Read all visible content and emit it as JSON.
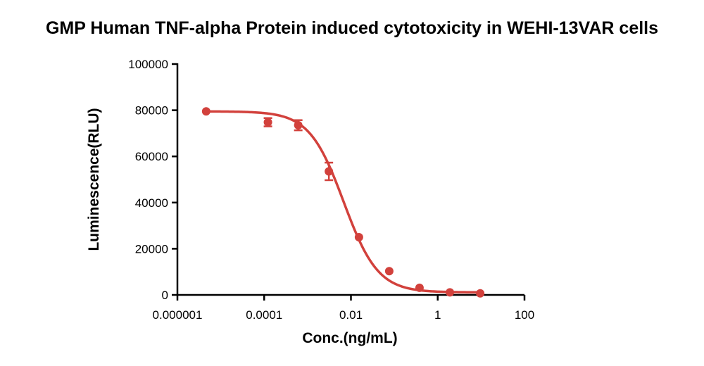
{
  "chart_data": {
    "type": "scatter",
    "title": "GMP Human TNF-alpha Protein induced cytotoxicity in WEHI-13VAR cells",
    "xlabel": "Conc.(ng/mL)",
    "ylabel": "Luminescence(RLU)",
    "x_scale": "log",
    "xlim": [
      1e-06,
      100
    ],
    "ylim": [
      0,
      100000
    ],
    "x_ticks": [
      1e-06,
      0.0001,
      0.01,
      1,
      100
    ],
    "x_tick_labels": [
      "0.000001",
      "0.0001",
      "0.01",
      "1",
      "100"
    ],
    "y_ticks": [
      0,
      20000,
      40000,
      60000,
      80000,
      100000
    ],
    "y_tick_labels": [
      "0",
      "20000",
      "40000",
      "60000",
      "80000",
      "100000"
    ],
    "series": [
      {
        "color": "#d2413c",
        "points": [
          {
            "x": 4.6e-06,
            "y": 79500,
            "err": 0
          },
          {
            "x": 0.000122,
            "y": 74800,
            "err": 1800
          },
          {
            "x": 0.00061,
            "y": 73500,
            "err": 2200
          },
          {
            "x": 0.0031,
            "y": 53500,
            "err": 3800
          },
          {
            "x": 0.0153,
            "y": 25000,
            "err": 0
          },
          {
            "x": 0.0763,
            "y": 10300,
            "err": 0
          },
          {
            "x": 0.381,
            "y": 3100,
            "err": 0
          },
          {
            "x": 1.91,
            "y": 1100,
            "err": 0
          },
          {
            "x": 9.54,
            "y": 700,
            "err": 0
          }
        ],
        "fit": {
          "model": "4PL",
          "top": 79500,
          "bottom": 1100,
          "ec50": 0.0068,
          "hill": 1.1
        }
      }
    ],
    "grid": false,
    "legend": "none"
  }
}
